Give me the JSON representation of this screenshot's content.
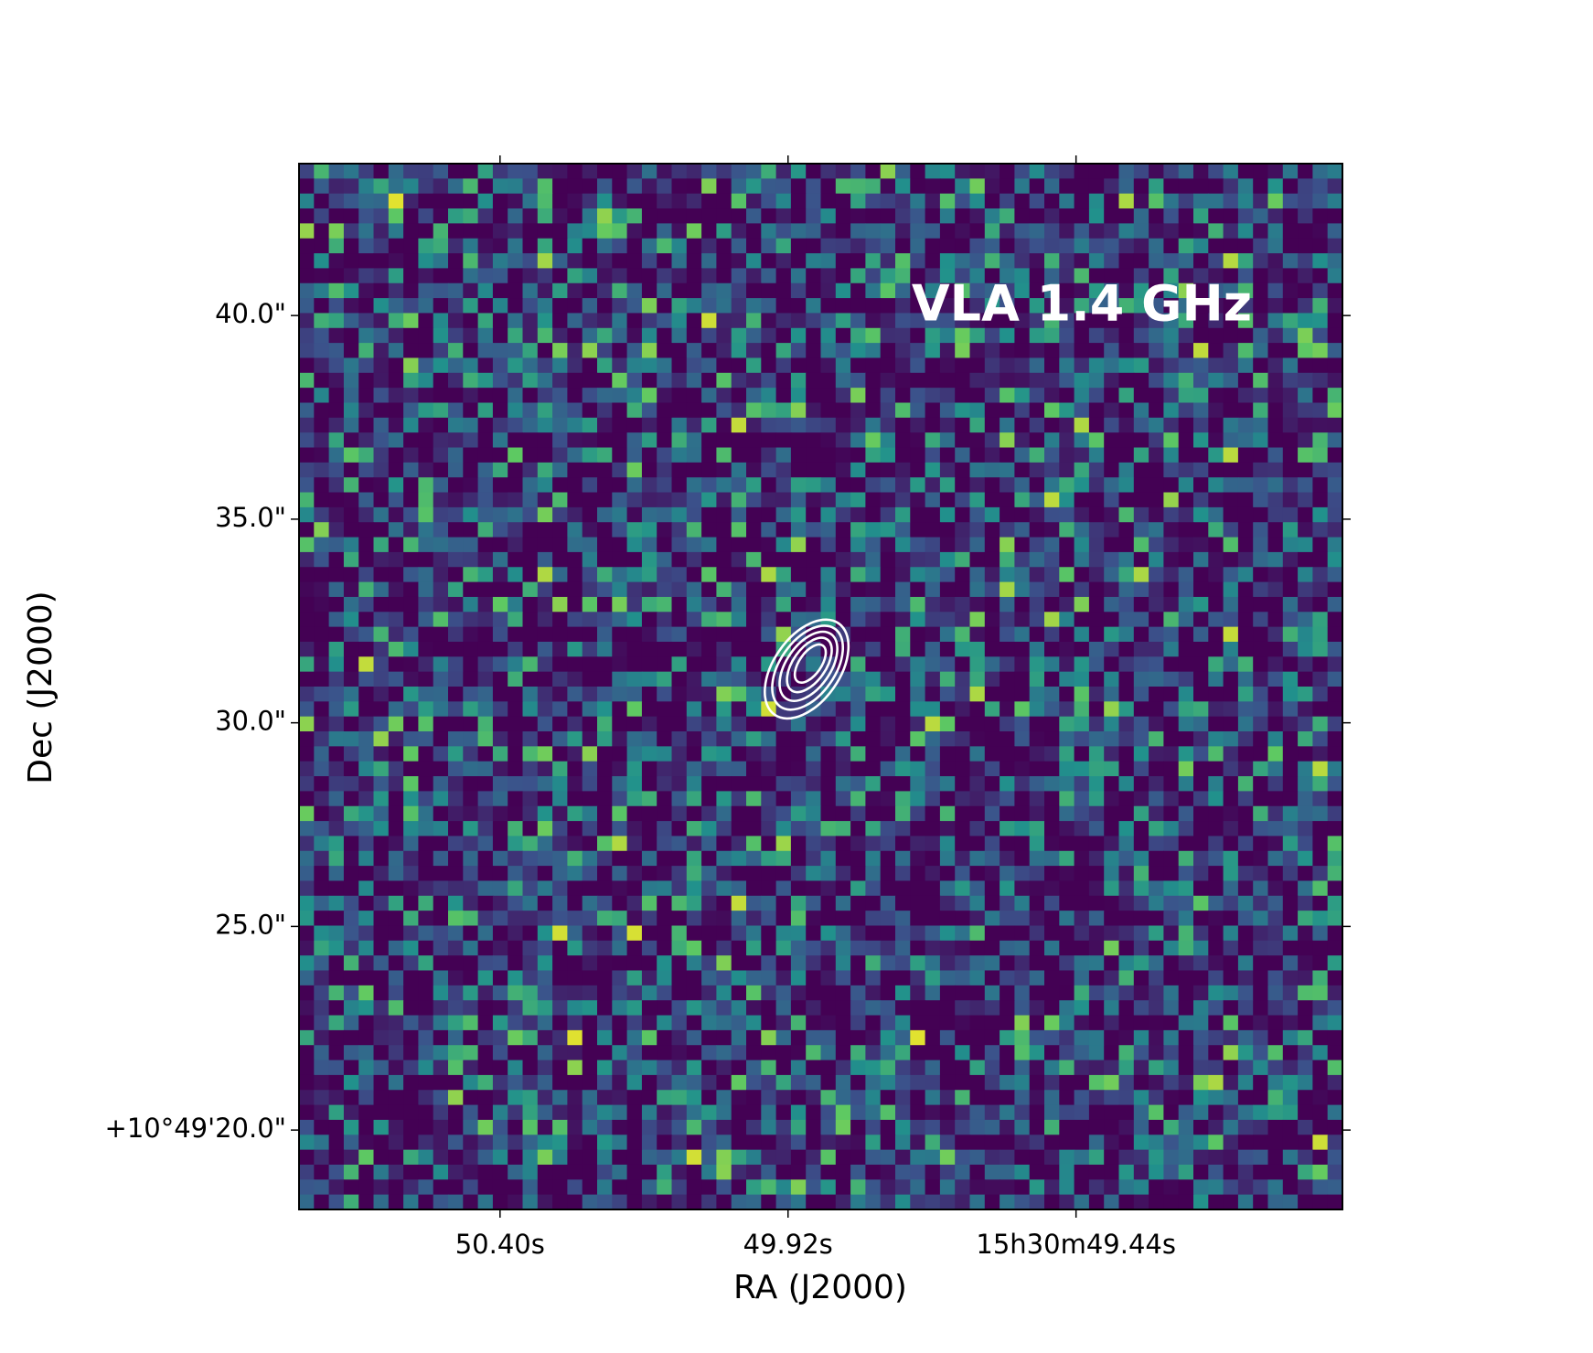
{
  "chart_data": {
    "type": "image",
    "annotation": "VLA 1.4 GHz",
    "x_label": "RA (J2000)",
    "y_label": "Dec (J2000)",
    "xlim": [
      50.735,
      48.996
    ],
    "ylim": [
      18.05,
      43.73
    ],
    "xticks": [
      {
        "value": 50.4,
        "label": "50.40s"
      },
      {
        "value": 49.92,
        "label": "49.92s"
      },
      {
        "value": 49.44,
        "label": "15h30m49.44s"
      }
    ],
    "yticks": [
      {
        "value": 20,
        "label": "+10°49'20.0\""
      },
      {
        "value": 25,
        "label": "25.0\""
      },
      {
        "value": 30,
        "label": "30.0\""
      },
      {
        "value": 35,
        "label": "35.0\""
      },
      {
        "value": 40,
        "label": "40.0\""
      }
    ],
    "source": {
      "x": 49.889,
      "y": 31.32,
      "color": "#ffffff"
    }
  }
}
